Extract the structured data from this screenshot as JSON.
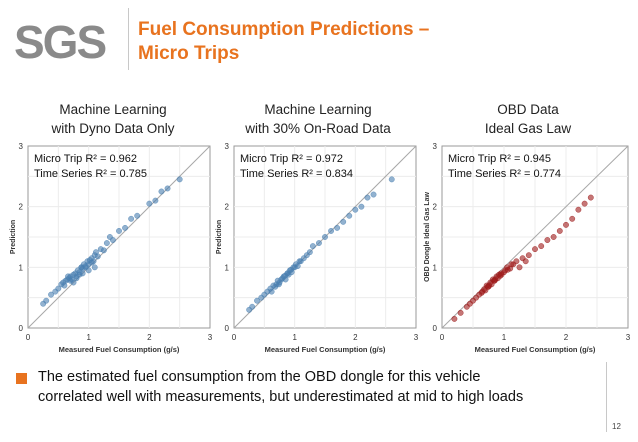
{
  "header": {
    "logo_text": "SGS",
    "title_line1": "Fuel Consumption Predictions –",
    "title_line2": "Micro Trips",
    "accent_color": "#e8731f"
  },
  "footer": {
    "bullet_line1": "The estimated fuel consumption from the OBD dongle for this vehicle",
    "bullet_line2": "correlated well with measurements, but underestimated at mid to high loads",
    "page_number": "12"
  },
  "panels": [
    {
      "title_line1": "Machine Learning",
      "title_line2": "with Dyno Data Only"
    },
    {
      "title_line1": "Machine Learning",
      "title_line2": "with 30% On-Road Data"
    },
    {
      "title_line1": "OBD Data",
      "title_line2": "Ideal Gas Law"
    }
  ],
  "chart_data": [
    {
      "type": "scatter",
      "title": "Machine Learning with Dyno Data Only",
      "annotation_line1": "Micro Trip R² = 0.962",
      "annotation_line2": "Time Series R² = 0.785",
      "xlabel": "Measured Fuel Consumption (g/s)",
      "ylabel": "Prediction",
      "xlim": [
        0,
        3
      ],
      "ylim": [
        0,
        3
      ],
      "xticks": [
        "0",
        "1",
        "2",
        "3"
      ],
      "yticks": [
        "0",
        "1",
        "2",
        "3"
      ],
      "color": "#4a7fb0",
      "x": [
        0.25,
        0.3,
        0.38,
        0.45,
        0.5,
        0.55,
        0.58,
        0.62,
        0.65,
        0.68,
        0.7,
        0.72,
        0.75,
        0.78,
        0.8,
        0.82,
        0.85,
        0.88,
        0.9,
        0.92,
        0.95,
        0.98,
        1.0,
        1.02,
        1.05,
        1.08,
        1.1,
        1.12,
        1.15,
        1.2,
        1.25,
        1.3,
        1.35,
        1.4,
        1.5,
        1.6,
        1.7,
        1.8,
        2.0,
        2.1,
        2.2,
        2.3,
        2.5,
        0.6,
        0.7,
        0.8,
        0.9,
        1.0,
        1.1,
        0.75,
        0.85,
        0.95,
        1.05,
        0.66,
        0.88
      ],
      "y": [
        0.4,
        0.45,
        0.55,
        0.6,
        0.65,
        0.72,
        0.75,
        0.78,
        0.8,
        0.82,
        0.85,
        0.8,
        0.88,
        0.9,
        0.85,
        0.95,
        0.92,
        1.0,
        0.98,
        1.05,
        1.02,
        1.1,
        1.05,
        1.12,
        1.15,
        1.1,
        1.2,
        1.25,
        1.18,
        1.3,
        1.28,
        1.4,
        1.5,
        1.45,
        1.6,
        1.65,
        1.8,
        1.85,
        2.05,
        2.1,
        2.25,
        2.3,
        2.45,
        0.7,
        0.78,
        0.82,
        0.9,
        0.95,
        1.0,
        0.75,
        0.88,
        1.0,
        1.08,
        0.85,
        1.0
      ]
    },
    {
      "type": "scatter",
      "title": "Machine Learning with 30% On-Road Data",
      "annotation_line1": "Micro Trip R² = 0.972",
      "annotation_line2": "Time Series R² = 0.834",
      "xlabel": "Measured Fuel Consumption (g/s)",
      "ylabel": "Prediction",
      "xlim": [
        0,
        3
      ],
      "ylim": [
        0,
        3
      ],
      "xticks": [
        "0",
        "1",
        "2",
        "3"
      ],
      "yticks": [
        "0",
        "1",
        "2",
        "3"
      ],
      "color": "#4a7fb0",
      "x": [
        0.25,
        0.3,
        0.38,
        0.45,
        0.5,
        0.55,
        0.6,
        0.65,
        0.7,
        0.72,
        0.75,
        0.8,
        0.82,
        0.85,
        0.88,
        0.9,
        0.92,
        0.95,
        1.0,
        1.02,
        1.05,
        1.1,
        1.15,
        1.2,
        1.25,
        1.3,
        1.4,
        1.5,
        1.6,
        1.7,
        1.8,
        1.9,
        2.0,
        2.1,
        2.2,
        2.3,
        2.6,
        0.68,
        0.78,
        0.88,
        0.98,
        1.08,
        0.62,
        0.74,
        0.84,
        0.94
      ],
      "y": [
        0.3,
        0.35,
        0.45,
        0.5,
        0.55,
        0.6,
        0.65,
        0.7,
        0.72,
        0.78,
        0.75,
        0.82,
        0.85,
        0.8,
        0.9,
        0.88,
        0.95,
        0.92,
        1.0,
        1.05,
        1.02,
        1.1,
        1.15,
        1.2,
        1.25,
        1.35,
        1.4,
        1.5,
        1.6,
        1.65,
        1.75,
        1.85,
        1.95,
        2.0,
        2.15,
        2.2,
        2.45,
        0.68,
        0.8,
        0.9,
        1.0,
        1.1,
        0.6,
        0.72,
        0.86,
        0.96
      ]
    },
    {
      "type": "scatter",
      "title": "OBD Data Ideal Gas Law",
      "annotation_line1": "Micro Trip R² = 0.945",
      "annotation_line2": "Time Series R² = 0.774",
      "xlabel": "Measured Fuel Consumption (g/s)",
      "ylabel": "OBD Dongle Ideal Gas Law",
      "xlim": [
        0,
        3
      ],
      "ylim": [
        0,
        3
      ],
      "xticks": [
        "0",
        "1",
        "2",
        "3"
      ],
      "yticks": [
        "0",
        "1",
        "2",
        "3"
      ],
      "color": "#9e1b1b",
      "x": [
        0.2,
        0.3,
        0.4,
        0.45,
        0.5,
        0.55,
        0.6,
        0.65,
        0.7,
        0.72,
        0.75,
        0.78,
        0.8,
        0.82,
        0.85,
        0.88,
        0.9,
        0.92,
        0.95,
        1.0,
        1.02,
        1.05,
        1.1,
        1.15,
        1.2,
        1.25,
        1.3,
        1.35,
        1.4,
        1.5,
        1.6,
        1.7,
        1.8,
        1.9,
        2.0,
        2.1,
        2.2,
        2.3,
        2.4,
        0.68,
        0.76,
        0.86,
        0.96,
        1.06,
        0.64,
        0.74,
        0.84,
        0.94,
        1.12
      ],
      "y": [
        0.15,
        0.25,
        0.35,
        0.4,
        0.45,
        0.5,
        0.55,
        0.6,
        0.62,
        0.7,
        0.68,
        0.75,
        0.72,
        0.8,
        0.78,
        0.85,
        0.82,
        0.88,
        0.9,
        0.92,
        0.95,
        1.0,
        0.98,
        1.05,
        1.1,
        1.0,
        1.15,
        1.1,
        1.2,
        1.3,
        1.35,
        1.45,
        1.5,
        1.6,
        1.7,
        1.8,
        1.95,
        2.05,
        2.15,
        0.64,
        0.7,
        0.8,
        0.88,
        0.96,
        0.58,
        0.68,
        0.78,
        0.86,
        1.05
      ]
    }
  ]
}
